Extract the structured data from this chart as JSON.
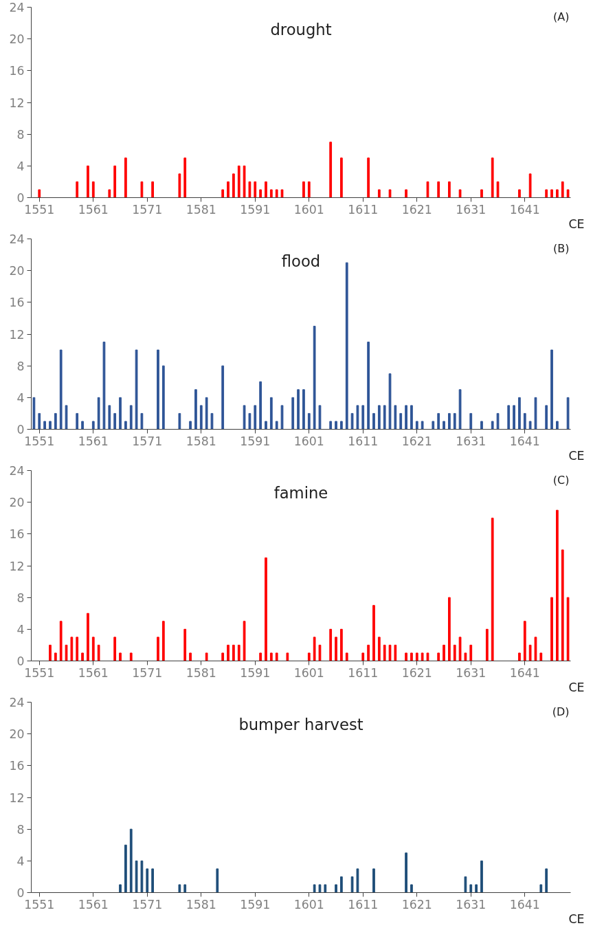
{
  "chart_data": [
    {
      "type": "bar",
      "title": "drought",
      "xlabel": "CE",
      "annotations": [
        "(A)"
      ],
      "color": "#ff0000",
      "xlim": [
        1549.5,
        1649.5
      ],
      "xticks": [
        1551,
        1561,
        1571,
        1581,
        1591,
        1601,
        1611,
        1621,
        1631,
        1641
      ],
      "ylim": [
        0,
        24
      ],
      "yticks": [
        0,
        4,
        8,
        12,
        16,
        20,
        24
      ],
      "x": [
        1551,
        1558,
        1560,
        1561,
        1564,
        1565,
        1567,
        1570,
        1572,
        1577,
        1578,
        1585,
        1586,
        1587,
        1588,
        1589,
        1590,
        1591,
        1592,
        1593,
        1594,
        1595,
        1596,
        1600,
        1601,
        1605,
        1607,
        1612,
        1614,
        1616,
        1619,
        1623,
        1625,
        1627,
        1629,
        1633,
        1635,
        1636,
        1640,
        1642,
        1645,
        1646,
        1647,
        1648,
        1649
      ],
      "values": [
        1,
        2,
        4,
        2,
        1,
        4,
        5,
        2,
        2,
        3,
        5,
        1,
        2,
        3,
        4,
        4,
        2,
        2,
        1,
        2,
        1,
        1,
        1,
        2,
        2,
        7,
        5,
        5,
        1,
        1,
        1,
        2,
        2,
        2,
        1,
        1,
        5,
        2,
        1,
        3,
        1,
        1,
        1,
        2,
        1
      ]
    },
    {
      "type": "bar",
      "title": "flood",
      "xlabel": "CE",
      "annotations": [
        "(B)"
      ],
      "color": "#2f5597",
      "xlim": [
        1549.5,
        1649.5
      ],
      "xticks": [
        1551,
        1561,
        1571,
        1581,
        1591,
        1601,
        1611,
        1621,
        1631,
        1641
      ],
      "ylim": [
        0,
        24
      ],
      "yticks": [
        0,
        4,
        8,
        12,
        16,
        20,
        24
      ],
      "x": [
        1550,
        1551,
        1552,
        1553,
        1554,
        1555,
        1556,
        1558,
        1559,
        1561,
        1562,
        1563,
        1564,
        1565,
        1566,
        1567,
        1568,
        1569,
        1570,
        1573,
        1574,
        1577,
        1579,
        1580,
        1581,
        1582,
        1583,
        1585,
        1589,
        1590,
        1591,
        1592,
        1593,
        1594,
        1595,
        1596,
        1598,
        1599,
        1600,
        1601,
        1602,
        1603,
        1605,
        1606,
        1607,
        1608,
        1609,
        1610,
        1611,
        1612,
        1613,
        1614,
        1615,
        1616,
        1617,
        1618,
        1619,
        1620,
        1621,
        1622,
        1624,
        1625,
        1626,
        1627,
        1628,
        1629,
        1631,
        1633,
        1635,
        1636,
        1638,
        1639,
        1640,
        1641,
        1642,
        1643,
        1645,
        1646,
        1647,
        1649
      ],
      "values": [
        4,
        2,
        1,
        1,
        2,
        10,
        3,
        2,
        1,
        1,
        4,
        11,
        3,
        2,
        4,
        1,
        3,
        10,
        2,
        10,
        8,
        2,
        1,
        5,
        3,
        4,
        2,
        8,
        3,
        2,
        3,
        6,
        1,
        4,
        1,
        3,
        4,
        5,
        5,
        2,
        13,
        3,
        1,
        1,
        1,
        21,
        2,
        3,
        3,
        11,
        2,
        3,
        3,
        7,
        3,
        2,
        3,
        3,
        1,
        1,
        1,
        2,
        1,
        2,
        2,
        5,
        2,
        1,
        1,
        2,
        3,
        3,
        4,
        2,
        1,
        4,
        3,
        10,
        1,
        4
      ]
    },
    {
      "type": "bar",
      "title": "famine",
      "xlabel": "CE",
      "annotations": [
        "(C)"
      ],
      "color": "#ff0000",
      "xlim": [
        1549.5,
        1649.5
      ],
      "xticks": [
        1551,
        1561,
        1571,
        1581,
        1591,
        1601,
        1611,
        1621,
        1631,
        1641
      ],
      "ylim": [
        0,
        24
      ],
      "yticks": [
        0,
        4,
        8,
        12,
        16,
        20,
        24
      ],
      "x": [
        1553,
        1554,
        1555,
        1556,
        1557,
        1558,
        1559,
        1560,
        1561,
        1562,
        1565,
        1566,
        1568,
        1573,
        1574,
        1578,
        1579,
        1582,
        1585,
        1586,
        1587,
        1588,
        1589,
        1592,
        1593,
        1594,
        1595,
        1597,
        1601,
        1602,
        1603,
        1605,
        1606,
        1607,
        1608,
        1611,
        1612,
        1613,
        1614,
        1615,
        1616,
        1617,
        1619,
        1620,
        1621,
        1622,
        1623,
        1625,
        1626,
        1627,
        1628,
        1629,
        1630,
        1631,
        1634,
        1635,
        1640,
        1641,
        1642,
        1643,
        1644,
        1646,
        1647,
        1648,
        1649
      ],
      "values": [
        2,
        1,
        5,
        2,
        3,
        3,
        1,
        6,
        3,
        2,
        3,
        1,
        1,
        3,
        5,
        4,
        1,
        1,
        1,
        2,
        2,
        2,
        5,
        1,
        13,
        1,
        1,
        1,
        1,
        3,
        2,
        4,
        3,
        4,
        1,
        1,
        2,
        7,
        3,
        2,
        2,
        2,
        1,
        1,
        1,
        1,
        1,
        1,
        2,
        8,
        2,
        3,
        1,
        2,
        4,
        18,
        1,
        5,
        2,
        3,
        1,
        8,
        19,
        14,
        8
      ]
    },
    {
      "type": "bar",
      "title": "bumper harvest",
      "xlabel": "CE",
      "annotations": [
        "(D)"
      ],
      "color": "#1f4e79",
      "xlim": [
        1549.5,
        1649.5
      ],
      "xticks": [
        1551,
        1561,
        1571,
        1581,
        1591,
        1601,
        1611,
        1621,
        1631,
        1641
      ],
      "ylim": [
        0,
        24
      ],
      "yticks": [
        0,
        4,
        8,
        12,
        16,
        20,
        24
      ],
      "x": [
        1566,
        1567,
        1568,
        1569,
        1570,
        1571,
        1572,
        1577,
        1578,
        1584,
        1602,
        1603,
        1604,
        1606,
        1607,
        1609,
        1610,
        1613,
        1619,
        1620,
        1630,
        1631,
        1632,
        1633,
        1644,
        1645
      ],
      "values": [
        1,
        6,
        8,
        4,
        4,
        3,
        3,
        1,
        1,
        3,
        1,
        1,
        1,
        1,
        2,
        2,
        3,
        3,
        5,
        1,
        2,
        1,
        1,
        4,
        1,
        3
      ]
    }
  ]
}
